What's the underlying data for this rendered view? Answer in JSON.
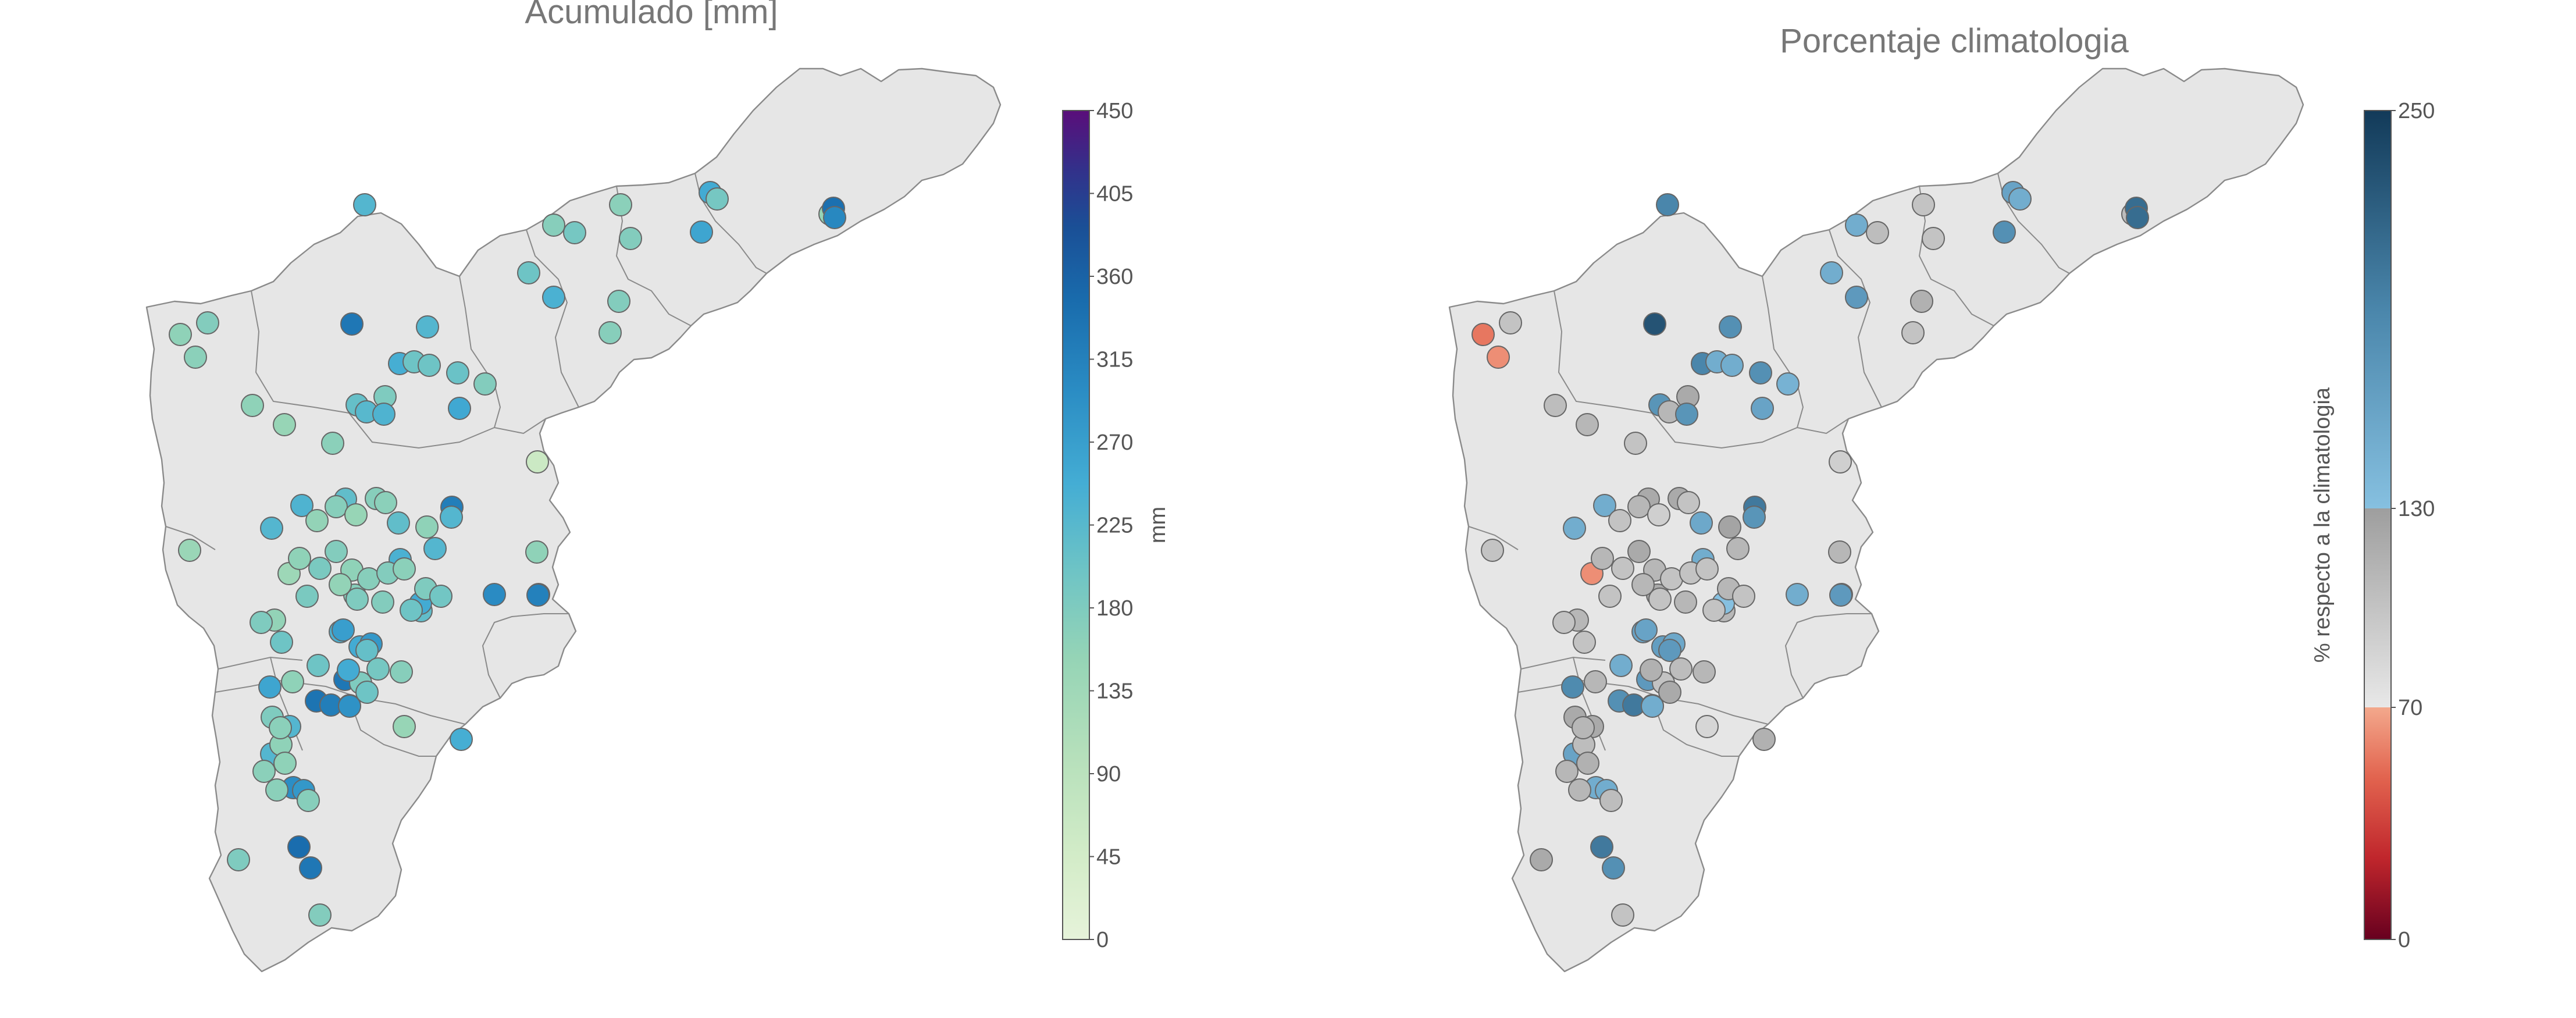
{
  "panels": [
    {
      "title": "Acumulado [mm]",
      "colorbar": {
        "label": "mm",
        "ticks": [
          "450",
          "405",
          "360",
          "315",
          "270",
          "225",
          "180",
          "135",
          "90",
          "45",
          "0"
        ],
        "colors": [
          "#e6f3da",
          "#bfe4bd",
          "#9cd6b4",
          "#77c7c6",
          "#4fb2d3",
          "#2f93c6",
          "#1b72b0",
          "#15559a",
          "#2a3a8e",
          "#3f1d86",
          "#5a0e7a"
        ]
      },
      "stations": [
        {
          "v": 230
        },
        {
          "v": 175
        },
        {
          "v": 170
        },
        {
          "v": 330
        },
        {
          "v": 230
        },
        {
          "v": 245
        },
        {
          "v": 200
        },
        {
          "v": 205
        },
        {
          "v": 175
        },
        {
          "v": 190
        },
        {
          "v": 165
        },
        {
          "v": 175
        },
        {
          "v": 260
        },
        {
          "v": 200
        },
        {
          "v": 240
        },
        {
          "v": 250
        },
        {
          "v": 190
        },
        {
          "v": 150
        },
        {
          "v": 175
        },
        {
          "v": 170
        },
        {
          "v": 160
        },
        {
          "v": 165
        },
        {
          "v": 160
        },
        {
          "v": 150
        },
        {
          "v": 60
        },
        {
          "v": 165
        },
        {
          "v": 180
        },
        {
          "v": 210
        },
        {
          "v": 200
        },
        {
          "v": 255
        },
        {
          "v": 225
        },
        {
          "v": 235
        },
        {
          "v": 320
        },
        {
          "v": 235
        },
        {
          "v": 215
        },
        {
          "v": 230
        },
        {
          "v": 215
        },
        {
          "v": 160
        },
        {
          "v": 240
        },
        {
          "v": 300
        },
        {
          "v": 315
        },
        {
          "v": 340
        },
        {
          "v": 305
        },
        {
          "v": 160
        },
        {
          "v": 315
        },
        {
          "v": 215
        },
        {
          "v": 145
        },
        {
          "v": 230
        },
        {
          "v": 170
        },
        {
          "v": 250
        },
        {
          "v": 240
        },
        {
          "v": 250
        },
        {
          "v": 280
        },
        {
          "v": 330
        },
        {
          "v": 335
        },
        {
          "v": 320
        },
        {
          "v": 330
        },
        {
          "v": 290
        },
        {
          "v": 245
        },
        {
          "v": 295
        },
        {
          "v": 345
        },
        {
          "v": 330
        },
        {
          "v": 280
        },
        {
          "v": 230
        },
        {
          "v": 230
        },
        {
          "v": 260
        },
        {
          "v": 200
        },
        {
          "v": 210
        },
        {
          "v": 150
        },
        {
          "v": 180
        },
        {
          "v": 190
        },
        {
          "v": 170
        },
        {
          "v": 180
        },
        {
          "v": 160
        },
        {
          "v": 155
        },
        {
          "v": 170
        },
        {
          "v": 150
        },
        {
          "v": 170
        },
        {
          "v": 165
        },
        {
          "v": 140
        },
        {
          "v": 160
        },
        {
          "v": 185
        },
        {
          "v": 175
        },
        {
          "v": 160
        },
        {
          "v": 170
        },
        {
          "v": 175
        },
        {
          "v": 165
        },
        {
          "v": 180
        },
        {
          "v": 230
        },
        {
          "v": 195
        },
        {
          "v": 200
        },
        {
          "v": 175
        },
        {
          "v": 180
        },
        {
          "v": 155
        },
        {
          "v": 185
        },
        {
          "v": 155
        },
        {
          "v": 180
        },
        {
          "v": 200
        },
        {
          "v": 160
        },
        {
          "v": 270
        },
        {
          "v": 250
        },
        {
          "v": 200
        },
        {
          "v": 165
        },
        {
          "v": 160
        },
        {
          "v": 165
        },
        {
          "v": 170
        },
        {
          "v": 165
        },
        {
          "v": 180
        },
        {
          "v": 175
        }
      ]
    },
    {
      "title": "Porcentaje climatologia",
      "colorbar": {
        "label": "% respecto a la climatologia",
        "ticks": [
          "250",
          "130",
          "70",
          "0"
        ]
      },
      "stations": [
        {
          "v": 190
        },
        {
          "v": 100
        },
        {
          "v": 150
        },
        {
          "v": 230
        },
        {
          "v": 180
        },
        {
          "v": 190
        },
        {
          "v": 150
        },
        {
          "v": 180
        },
        {
          "v": 145
        },
        {
          "v": 105
        },
        {
          "v": 100
        },
        {
          "v": 100
        },
        {
          "v": 180
        },
        {
          "v": 150
        },
        {
          "v": 170
        },
        {
          "v": 160
        },
        {
          "v": 150
        },
        {
          "v": 105
        },
        {
          "v": 115
        },
        {
          "v": 100
        },
        {
          "v": 55
        },
        {
          "v": 62
        },
        {
          "v": 105
        },
        {
          "v": 110
        },
        {
          "v": 90
        },
        {
          "v": 100
        },
        {
          "v": 120
        },
        {
          "v": 175
        },
        {
          "v": 150
        },
        {
          "v": 160
        },
        {
          "v": 110
        },
        {
          "v": 175
        },
        {
          "v": 200
        },
        {
          "v": 150
        },
        {
          "v": 120
        },
        {
          "v": 175
        },
        {
          "v": 155
        },
        {
          "v": 125
        },
        {
          "v": 150
        },
        {
          "v": 150
        },
        {
          "v": 170
        },
        {
          "v": 210
        },
        {
          "v": 210
        },
        {
          "v": 110
        },
        {
          "v": 170
        },
        {
          "v": 110
        },
        {
          "v": 100
        },
        {
          "v": 150
        },
        {
          "v": 120
        },
        {
          "v": 130
        },
        {
          "v": 160
        },
        {
          "v": 165
        },
        {
          "v": 155
        },
        {
          "v": 170
        },
        {
          "v": 180
        },
        {
          "v": 200
        },
        {
          "v": 175
        },
        {
          "v": 150
        },
        {
          "v": 115
        },
        {
          "v": 150
        },
        {
          "v": 200
        },
        {
          "v": 180
        },
        {
          "v": 150
        },
        {
          "v": 160
        },
        {
          "v": 120
        },
        {
          "v": 185
        },
        {
          "v": 150
        },
        {
          "v": 170
        },
        {
          "v": 85
        },
        {
          "v": 100
        },
        {
          "v": 105
        },
        {
          "v": 110
        },
        {
          "v": 120
        },
        {
          "v": 105
        },
        {
          "v": 100
        },
        {
          "v": 110
        },
        {
          "v": 90
        },
        {
          "v": 120
        },
        {
          "v": 100
        },
        {
          "v": 62
        },
        {
          "v": 110
        },
        {
          "v": 100
        },
        {
          "v": 120
        },
        {
          "v": 110
        },
        {
          "v": 100
        },
        {
          "v": 100
        },
        {
          "v": 100
        },
        {
          "v": 110
        },
        {
          "v": 110
        },
        {
          "v": 100
        },
        {
          "v": 100
        },
        {
          "v": 110
        },
        {
          "v": 100
        },
        {
          "v": 110
        },
        {
          "v": 100
        },
        {
          "v": 110
        },
        {
          "v": 100
        },
        {
          "v": 100
        },
        {
          "v": 110
        },
        {
          "v": 160
        },
        {
          "v": 115
        },
        {
          "v": 120
        },
        {
          "v": 110
        },
        {
          "v": 115
        },
        {
          "v": 110
        },
        {
          "v": 105
        },
        {
          "v": 110
        },
        {
          "v": 120
        },
        {
          "v": 100
        }
      ]
    }
  ]
}
